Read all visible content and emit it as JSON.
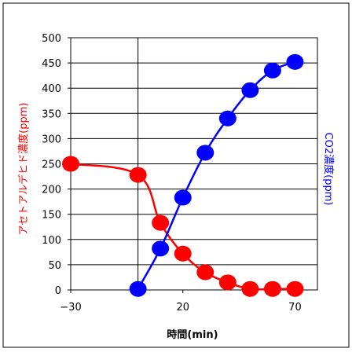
{
  "chart_data": {
    "type": "line",
    "title": "",
    "xlabel": "時間(min)",
    "ylabel": "アセトアルデヒド濃度(ppm)",
    "ylabel_right": "CO2濃度(ppm)",
    "xlim": [
      -30,
      80
    ],
    "ylim": [
      0,
      500
    ],
    "xticks": [
      -30,
      20,
      70
    ],
    "yticks": [
      0,
      50,
      100,
      150,
      200,
      250,
      300,
      350,
      400,
      450,
      500
    ],
    "grid": true,
    "legend": "none",
    "series": [
      {
        "x": [
          -30,
          0,
          10,
          20,
          30,
          40,
          50,
          60,
          70
        ],
        "values": [
          250,
          228,
          133,
          72,
          35,
          15,
          2,
          2,
          2
        ],
        "color": "#ff0000"
      },
      {
        "x": [
          0,
          10,
          20,
          30,
          40,
          50,
          60,
          70
        ],
        "values": [
          2,
          82,
          183,
          272,
          340,
          396,
          435,
          452
        ],
        "color": "#0000ff"
      }
    ]
  }
}
